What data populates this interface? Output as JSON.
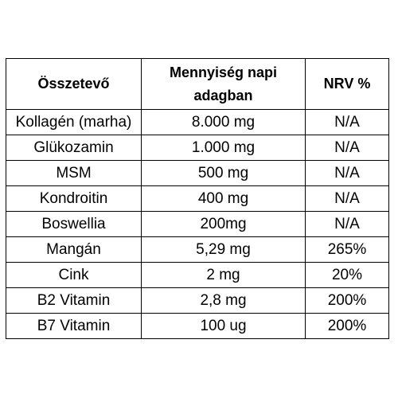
{
  "table": {
    "headers": {
      "ingredient": "Összetevő",
      "amount_line1": "Mennyiség napi",
      "amount_line2": "adagban",
      "nrv": "NRV %"
    },
    "rows": [
      {
        "ingredient": "Kollagén (marha)",
        "amount": "8.000 mg",
        "nrv": "N/A"
      },
      {
        "ingredient": "Glükozamin",
        "amount": "1.000 mg",
        "nrv": "N/A"
      },
      {
        "ingredient": "MSM",
        "amount": "500 mg",
        "nrv": "N/A"
      },
      {
        "ingredient": "Kondroitin",
        "amount": "400 mg",
        "nrv": "N/A"
      },
      {
        "ingredient": "Boswellia",
        "amount": "200mg",
        "nrv": "N/A"
      },
      {
        "ingredient": "Mangán",
        "amount": "5,29 mg",
        "nrv": "265%"
      },
      {
        "ingredient": "Cink",
        "amount": "2 mg",
        "nrv": "20%"
      },
      {
        "ingredient": "B2 Vitamin",
        "amount": "2,8 mg",
        "nrv": "200%"
      },
      {
        "ingredient": "B7 Vitamin",
        "amount": "100 ug",
        "nrv": "200%"
      }
    ]
  }
}
